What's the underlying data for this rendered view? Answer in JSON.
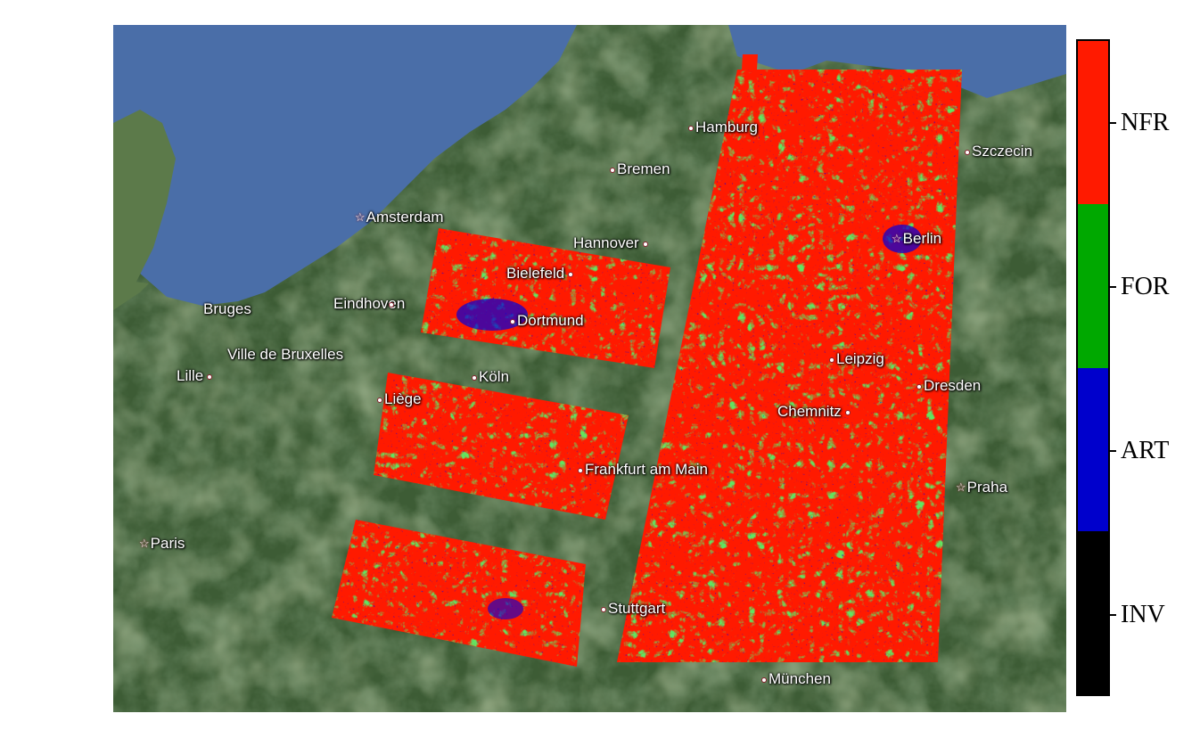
{
  "map": {
    "cities": [
      {
        "id": "hamburg",
        "label": "Hamburg",
        "marker": "dot"
      },
      {
        "id": "bremen",
        "label": "Bremen",
        "marker": "dot"
      },
      {
        "id": "szczecin",
        "label": "Szczecin",
        "marker": "dot"
      },
      {
        "id": "amsterdam",
        "label": "Amsterdam",
        "marker": "star"
      },
      {
        "id": "hannover",
        "label": "Hannover",
        "marker": "dot-after"
      },
      {
        "id": "berlin",
        "label": "Berlin",
        "marker": "star"
      },
      {
        "id": "bielefeld",
        "label": "Bielefeld",
        "marker": "dot-after"
      },
      {
        "id": "eindhoven",
        "label": "Eindhoven",
        "marker": "dot-after"
      },
      {
        "id": "bruges",
        "label": "Bruges",
        "marker": "none"
      },
      {
        "id": "dortmund",
        "label": "Dortmund",
        "marker": "dot"
      },
      {
        "id": "bruxelles",
        "label": "Ville de Bruxelles",
        "marker": "star-after"
      },
      {
        "id": "leipzig",
        "label": "Leipzig",
        "marker": "dot"
      },
      {
        "id": "lille",
        "label": "Lille",
        "marker": "dot-after"
      },
      {
        "id": "koln",
        "label": "Köln",
        "marker": "dot"
      },
      {
        "id": "dresden",
        "label": "Dresden",
        "marker": "dot"
      },
      {
        "id": "liege",
        "label": "Liège",
        "marker": "dot"
      },
      {
        "id": "chemnitz",
        "label": "Chemnitz",
        "marker": "dot-after"
      },
      {
        "id": "frankfurt",
        "label": "Frankfurt am Main",
        "marker": "dot"
      },
      {
        "id": "praha",
        "label": "Praha",
        "marker": "star"
      },
      {
        "id": "paris",
        "label": "Paris",
        "marker": "star"
      },
      {
        "id": "stuttgart",
        "label": "Stuttgart",
        "marker": "dot"
      },
      {
        "id": "munchen",
        "label": "München",
        "marker": "dot"
      }
    ],
    "colors": {
      "sea": "#4a6ea8",
      "land": "#3d5c35",
      "land_light": "#5d7a4a",
      "nfr": "#ff1a00",
      "for": "#1ec81e",
      "art": "#0000dd",
      "inv": "#000000"
    }
  },
  "legend": {
    "items": [
      {
        "label": "NFR",
        "color": "#ff1a00"
      },
      {
        "label": "FOR",
        "color": "#00a800"
      },
      {
        "label": "ART",
        "color": "#0000cc"
      },
      {
        "label": "INV",
        "color": "#000000"
      }
    ]
  }
}
